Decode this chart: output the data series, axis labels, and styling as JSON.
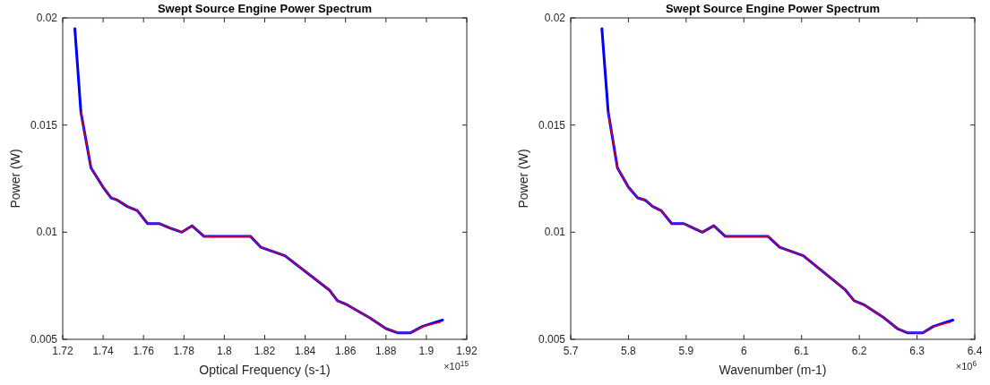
{
  "chart_data": [
    {
      "type": "line",
      "title": "Swept Source Engine Power Spectrum",
      "xlabel": "Optical Frequency (s-1)",
      "ylabel": "Power (W)",
      "annotations": [
        "×10$^{15}$"
      ],
      "xlim": [
        1.72,
        1.92
      ],
      "xticks": [
        1.72,
        1.74,
        1.76,
        1.78,
        {
          "value": 1.8,
          "label": "1.8"
        },
        1.82,
        1.84,
        1.86,
        1.88,
        {
          "value": 1.9,
          "label": "1.9"
        },
        1.92
      ],
      "ylim": [
        0.005,
        0.02
      ],
      "yticks": [
        0.005,
        0.01,
        0.015,
        0.02
      ],
      "grid": false,
      "series": [
        {
          "color": "#0000ff",
          "x": [
            1.726,
            1.729,
            1.734,
            1.74,
            1.744,
            1.747,
            1.752,
            1.757,
            1.762,
            1.768,
            1.773,
            1.779,
            1.784,
            1.79,
            1.813,
            1.818,
            1.83,
            1.852,
            1.856,
            1.861,
            1.872,
            1.88,
            1.886,
            1.892,
            1.898,
            1.908
          ],
          "values": [
            0.0195,
            0.0156,
            0.013,
            0.0121,
            0.0116,
            0.0115,
            0.0112,
            0.011,
            0.0104,
            0.0104,
            0.0102,
            0.01,
            0.0103,
            0.0098,
            0.0098,
            0.0093,
            0.0089,
            0.0073,
            0.0068,
            0.0066,
            0.006,
            0.0055,
            0.0053,
            0.0053,
            0.0056,
            0.0059
          ]
        },
        {
          "color": "#ff0000",
          "x": [
            1.729,
            1.734,
            1.74,
            1.744,
            1.747,
            1.752,
            1.757,
            1.762,
            1.768,
            1.773,
            1.779,
            1.784,
            1.79,
            1.813,
            1.818,
            1.83,
            1.852,
            1.856,
            1.861,
            1.872,
            1.88,
            1.886,
            1.892,
            1.898,
            1.907
          ],
          "values": [
            0.0156,
            0.013,
            0.0121,
            0.0116,
            0.0115,
            0.0112,
            0.011,
            0.0104,
            0.0104,
            0.0102,
            0.01,
            0.0103,
            0.0098,
            0.0098,
            0.0093,
            0.0089,
            0.0073,
            0.0068,
            0.0066,
            0.006,
            0.0055,
            0.0053,
            0.0053,
            0.0056,
            0.0058
          ]
        }
      ]
    },
    {
      "type": "line",
      "title": "Swept Source Engine Power Spectrum",
      "xlabel": "Wavenumber (m-1)",
      "ylabel": "Power (W)",
      "annotations": [
        "×10$^{6}$"
      ],
      "xlim": [
        5.7,
        6.4
      ],
      "xticks": [
        5.7,
        5.8,
        5.9,
        6,
        6.1,
        6.2,
        6.3,
        6.4
      ],
      "ylim": [
        0.005,
        0.02
      ],
      "yticks": [
        0.005,
        0.01,
        0.015,
        0.02
      ],
      "grid": false,
      "series": [
        {
          "color": "#0000ff",
          "x": [
            5.754,
            5.765,
            5.781,
            5.8,
            5.816,
            5.829,
            5.842,
            5.857,
            5.875,
            5.896,
            5.912,
            5.928,
            5.948,
            5.968,
            6.042,
            6.062,
            6.103,
            6.176,
            6.191,
            6.209,
            6.243,
            6.266,
            6.284,
            6.31,
            6.328,
            6.362
          ],
          "values": [
            0.0195,
            0.0156,
            0.013,
            0.0121,
            0.0116,
            0.0115,
            0.0112,
            0.011,
            0.0104,
            0.0104,
            0.0102,
            0.01,
            0.0103,
            0.0098,
            0.0098,
            0.0093,
            0.0089,
            0.0073,
            0.0068,
            0.0066,
            0.006,
            0.0055,
            0.0053,
            0.0053,
            0.0056,
            0.0059
          ]
        },
        {
          "color": "#ff0000",
          "x": [
            5.765,
            5.781,
            5.8,
            5.816,
            5.829,
            5.842,
            5.857,
            5.875,
            5.896,
            5.912,
            5.928,
            5.948,
            5.968,
            6.042,
            6.062,
            6.103,
            6.176,
            6.191,
            6.209,
            6.243,
            6.266,
            6.284,
            6.31,
            6.328,
            6.358
          ],
          "values": [
            0.0156,
            0.013,
            0.0121,
            0.0116,
            0.0115,
            0.0112,
            0.011,
            0.0104,
            0.0104,
            0.0102,
            0.01,
            0.0103,
            0.0098,
            0.0098,
            0.0093,
            0.0089,
            0.0073,
            0.0068,
            0.0066,
            0.006,
            0.0055,
            0.0053,
            0.0053,
            0.0056,
            0.0058
          ]
        }
      ]
    }
  ]
}
